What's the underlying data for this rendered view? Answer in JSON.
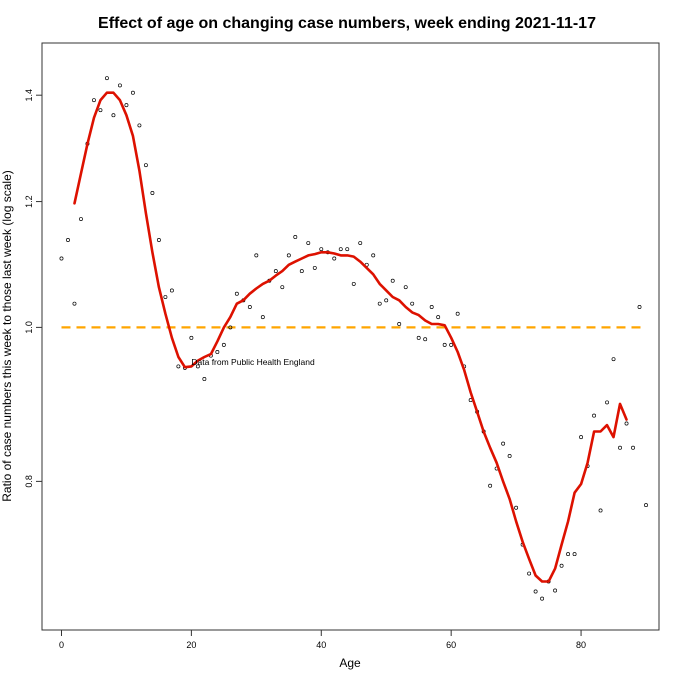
{
  "chart_data": {
    "type": "scatter",
    "title": "Effect of age on changing case numbers, week ending 2021-11-17",
    "xlabel": "Age",
    "ylabel": "Ratio of case numbers this week to those last week (log scale)",
    "xlim": [
      -3,
      92
    ],
    "ylim": [
      0.645,
      1.51
    ],
    "y_scale": "log",
    "x_ticks": [
      0,
      20,
      40,
      60,
      80
    ],
    "y_ticks": [
      0.8,
      1.0,
      1.2,
      1.4
    ],
    "y_tick_labels": [
      "0.8",
      "1.0",
      "1.2",
      "1.4"
    ],
    "grid": false,
    "annotation": "Data from Public Health England",
    "annotation_pos": {
      "x": 20,
      "y": 0.947
    },
    "reference_line": {
      "y": 1.0,
      "color": "#ffa500",
      "style": "dashed"
    },
    "points": {
      "color": "#000000",
      "x": [
        0,
        1,
        2,
        3,
        4,
        5,
        6,
        7,
        8,
        9,
        10,
        11,
        12,
        13,
        14,
        15,
        16,
        17,
        18,
        19,
        20,
        21,
        22,
        23,
        24,
        25,
        26,
        27,
        28,
        29,
        30,
        31,
        32,
        33,
        34,
        35,
        36,
        37,
        38,
        39,
        40,
        41,
        42,
        43,
        44,
        45,
        46,
        47,
        48,
        49,
        50,
        51,
        52,
        53,
        54,
        55,
        56,
        57,
        58,
        59,
        60,
        61,
        62,
        63,
        64,
        65,
        66,
        67,
        68,
        69,
        70,
        71,
        72,
        73,
        74,
        75,
        76,
        77,
        78,
        79,
        80,
        81,
        82,
        83,
        84,
        85,
        86,
        87,
        88,
        89,
        90
      ],
      "y": [
        1.105,
        1.135,
        1.035,
        1.17,
        1.305,
        1.39,
        1.37,
        1.435,
        1.36,
        1.42,
        1.38,
        1.405,
        1.34,
        1.265,
        1.215,
        1.135,
        1.045,
        1.055,
        0.945,
        0.943,
        0.985,
        0.945,
        0.928,
        0.96,
        0.965,
        0.975,
        1.0,
        1.05,
        1.04,
        1.03,
        1.11,
        1.015,
        1.07,
        1.085,
        1.06,
        1.11,
        1.14,
        1.085,
        1.13,
        1.09,
        1.12,
        1.115,
        1.105,
        1.12,
        1.12,
        1.065,
        1.13,
        1.095,
        1.11,
        1.035,
        1.04,
        1.07,
        1.005,
        1.06,
        1.035,
        0.985,
        0.983,
        1.03,
        1.015,
        0.975,
        0.975,
        1.02,
        0.945,
        0.9,
        0.885,
        0.86,
        0.795,
        0.815,
        0.845,
        0.83,
        0.77,
        0.73,
        0.7,
        0.682,
        0.675,
        0.692,
        0.683,
        0.708,
        0.72,
        0.72,
        0.853,
        0.818,
        0.88,
        0.767,
        0.897,
        0.955,
        0.84,
        0.87,
        0.84,
        1.03,
        0.773
      ]
    },
    "series": [
      {
        "color": "#dd1100",
        "x": [
          2,
          3,
          4,
          5,
          6,
          7,
          8,
          9,
          10,
          11,
          12,
          13,
          14,
          15,
          16,
          17,
          18,
          19,
          20,
          21,
          22,
          23,
          24,
          25,
          26,
          27,
          28,
          29,
          30,
          31,
          32,
          33,
          34,
          35,
          36,
          37,
          38,
          39,
          40,
          41,
          42,
          43,
          44,
          45,
          46,
          47,
          48,
          49,
          50,
          51,
          52,
          53,
          54,
          55,
          56,
          57,
          58,
          59,
          60,
          61,
          62,
          63,
          64,
          65,
          66,
          67,
          68,
          69,
          70,
          71,
          72,
          73,
          74,
          75,
          76,
          77,
          78,
          79,
          80,
          81,
          82,
          83,
          84,
          85,
          86,
          87
        ],
        "y": [
          1.197,
          1.25,
          1.305,
          1.355,
          1.39,
          1.405,
          1.405,
          1.39,
          1.36,
          1.32,
          1.255,
          1.18,
          1.115,
          1.06,
          1.02,
          0.985,
          0.958,
          0.944,
          0.945,
          0.953,
          0.958,
          0.962,
          0.98,
          1.0,
          1.015,
          1.035,
          1.04,
          1.05,
          1.058,
          1.065,
          1.07,
          1.078,
          1.085,
          1.095,
          1.1,
          1.105,
          1.11,
          1.112,
          1.115,
          1.115,
          1.113,
          1.11,
          1.11,
          1.108,
          1.1,
          1.09,
          1.08,
          1.065,
          1.055,
          1.045,
          1.04,
          1.03,
          1.022,
          1.018,
          1.01,
          1.005,
          1.005,
          1.003,
          0.985,
          0.965,
          0.94,
          0.91,
          0.885,
          0.86,
          0.84,
          0.822,
          0.8,
          0.78,
          0.755,
          0.733,
          0.715,
          0.698,
          0.692,
          0.692,
          0.705,
          0.73,
          0.755,
          0.787,
          0.797,
          0.822,
          0.86,
          0.86,
          0.868,
          0.853,
          0.895,
          0.875
        ]
      }
    ]
  }
}
